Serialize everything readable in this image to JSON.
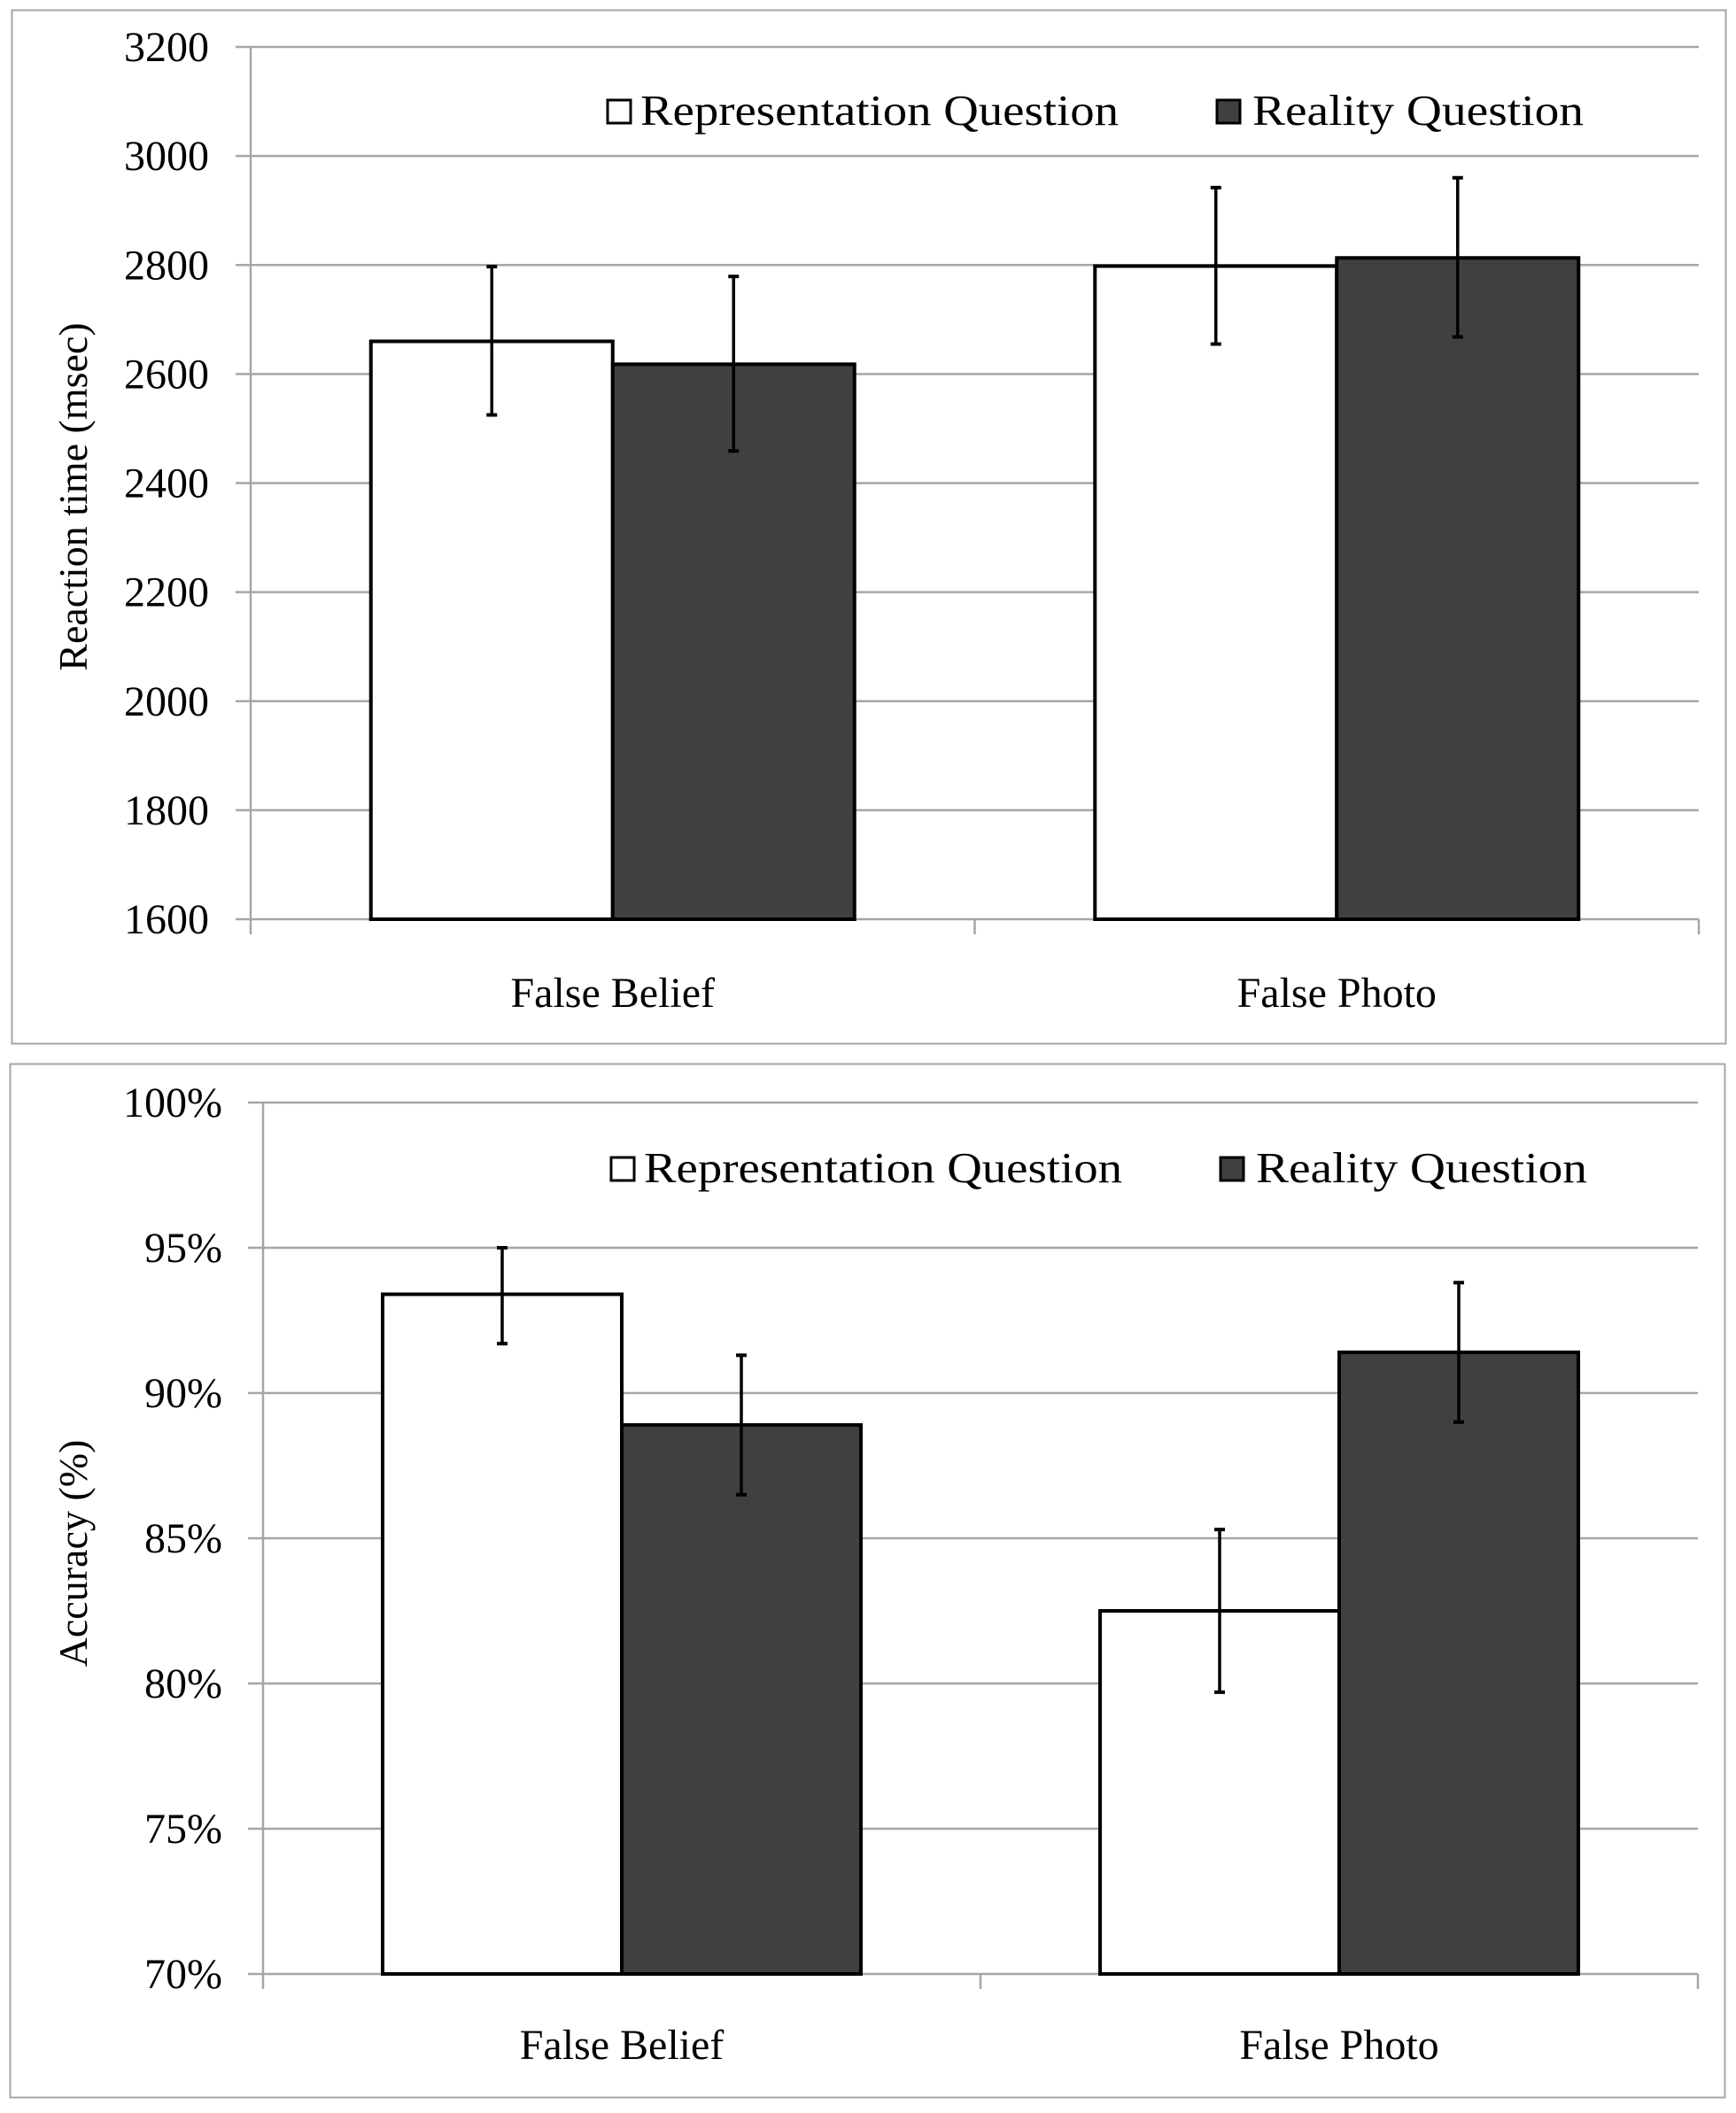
{
  "colors": {
    "representation_fill": "#ffffff",
    "reality_fill": "#404040",
    "bar_stroke": "#000000",
    "gridline": "#a6a6a6",
    "frame": "#a6a6a6"
  },
  "legend": {
    "items": [
      {
        "label": "Representation Question",
        "swatch": "white-square-icon"
      },
      {
        "label": "Reality Question",
        "swatch": "dark-square-icon"
      }
    ]
  },
  "chart_data": [
    {
      "type": "bar",
      "title": "",
      "xlabel": "",
      "ylabel": "Reaction time (msec)",
      "ylim": [
        1600,
        3200
      ],
      "yticks": [
        1600,
        1800,
        2000,
        2200,
        2400,
        2600,
        2800,
        3000,
        3200
      ],
      "ytick_labels": [
        "1600",
        "1800",
        "2000",
        "2200",
        "2400",
        "2600",
        "2800",
        "3000",
        "3200"
      ],
      "categories": [
        "False Belief",
        "False Photo"
      ],
      "series": [
        {
          "name": "Representation Question",
          "values": [
            2660,
            2798
          ],
          "error_low": [
            2525,
            2655
          ],
          "error_high": [
            2797,
            2942
          ]
        },
        {
          "name": "Reality Question",
          "values": [
            2618,
            2813
          ],
          "error_low": [
            2459,
            2668
          ],
          "error_high": [
            2779,
            2960
          ]
        }
      ],
      "grid": true,
      "legend_position": "top-inside"
    },
    {
      "type": "bar",
      "title": "",
      "xlabel": "",
      "ylabel": "Accuracy (%)",
      "ylim": [
        70,
        100
      ],
      "yticks": [
        70,
        75,
        80,
        85,
        90,
        95,
        100
      ],
      "ytick_labels": [
        "70%",
        "75%",
        "80%",
        "85%",
        "90%",
        "95%",
        "100%"
      ],
      "categories": [
        "False Belief",
        "False Photo"
      ],
      "series": [
        {
          "name": "Representation Question",
          "values": [
            93.4,
            82.5
          ],
          "error_low": [
            91.7,
            79.7
          ],
          "error_high": [
            95.0,
            85.3
          ]
        },
        {
          "name": "Reality Question",
          "values": [
            88.9,
            91.4
          ],
          "error_low": [
            86.5,
            89.0
          ],
          "error_high": [
            91.3,
            93.8
          ]
        }
      ],
      "grid": true,
      "legend_position": "top-inside"
    }
  ]
}
